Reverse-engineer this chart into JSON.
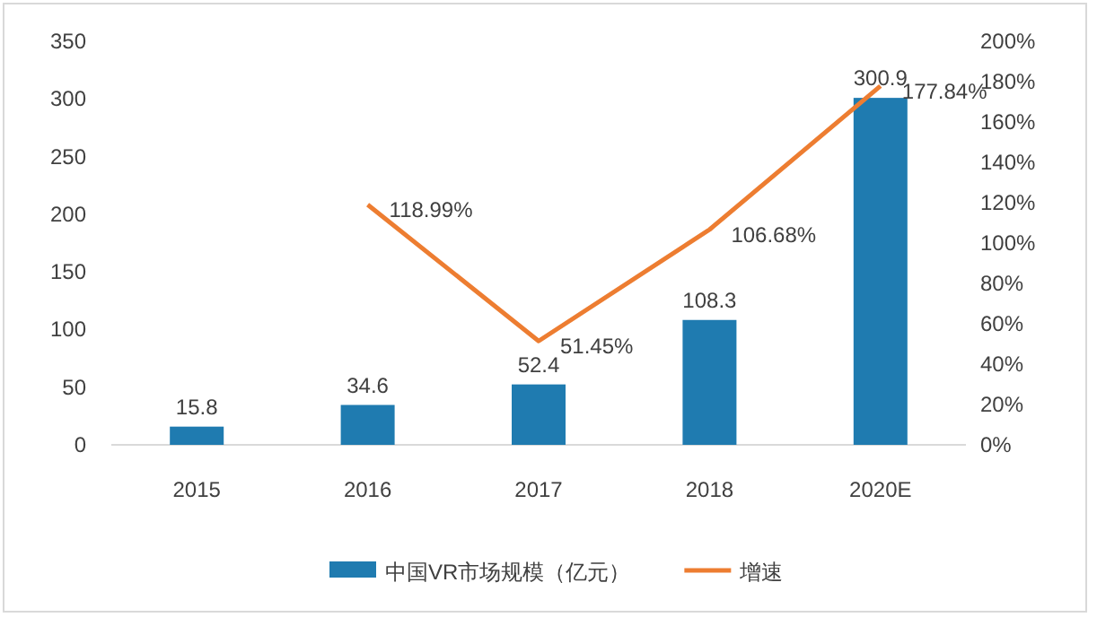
{
  "chart_data": {
    "type": "bar",
    "categories": [
      "2015",
      "2016",
      "2017",
      "2018",
      "2020E"
    ],
    "series": [
      {
        "name": "中国VR市场规模（亿元）",
        "color": "#1f7bb0",
        "values": [
          15.8,
          34.6,
          52.4,
          108.3,
          300.9
        ]
      },
      {
        "name": "增速",
        "type": "line",
        "axis": "y2",
        "color": "#ed7d31",
        "values": [
          null,
          118.99,
          51.45,
          106.68,
          177.84
        ],
        "value_labels": [
          null,
          "118.99%",
          "51.45%",
          "106.68%",
          "177.84%"
        ]
      }
    ],
    "data_labels": true,
    "ylim": [
      0,
      350
    ],
    "yticks": [
      0,
      50,
      100,
      150,
      200,
      250,
      300,
      350
    ],
    "y2lim": [
      0,
      200
    ],
    "y2ticks": [
      {
        "value": 0,
        "label": "0%"
      },
      {
        "value": 20,
        "label": "20%"
      },
      {
        "value": 40,
        "label": "40%"
      },
      {
        "value": 60,
        "label": "60%"
      },
      {
        "value": 80,
        "label": "80%"
      },
      {
        "value": 100,
        "label": "100%"
      },
      {
        "value": 120,
        "label": "120%"
      },
      {
        "value": 140,
        "label": "140%"
      },
      {
        "value": 160,
        "label": "160%"
      },
      {
        "value": 180,
        "label": "180%"
      },
      {
        "value": 200,
        "label": "200%"
      }
    ],
    "grid": false,
    "legend": "bottom",
    "marker": "none",
    "line_style": "solid"
  }
}
